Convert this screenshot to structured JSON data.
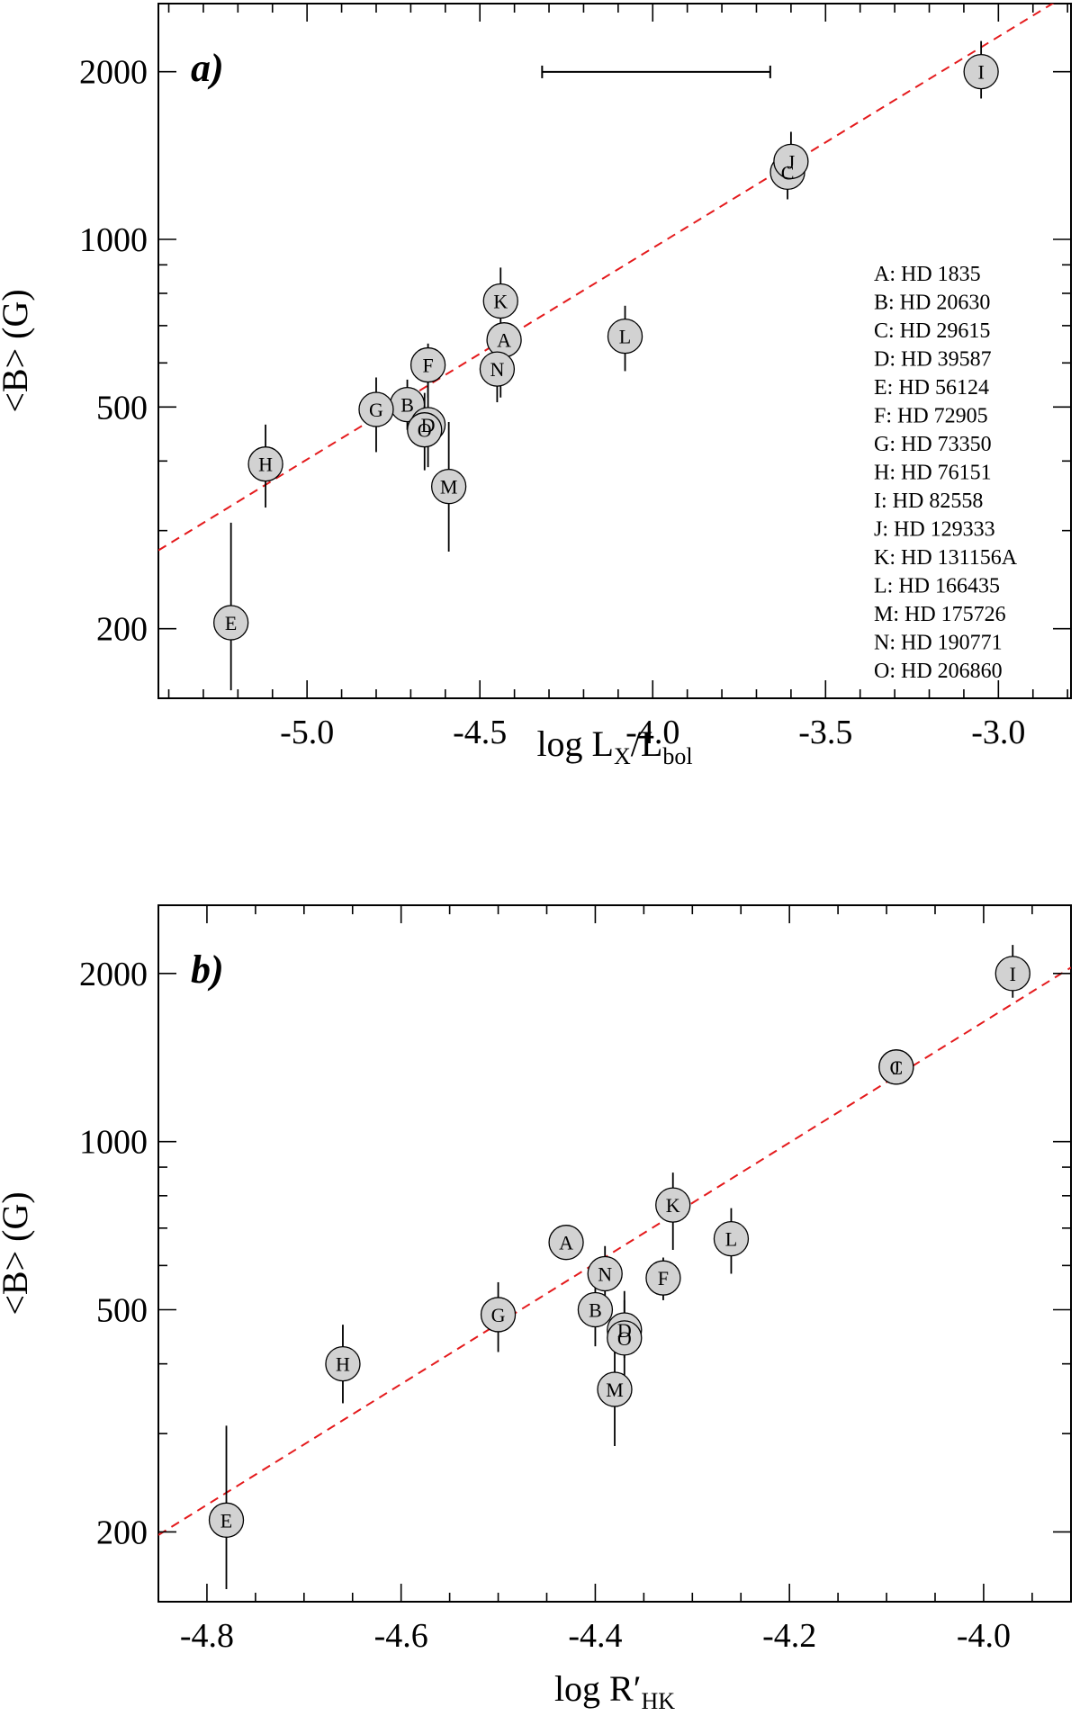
{
  "chart_data": [
    {
      "type": "scatter",
      "panel_label": "a)",
      "xlabel": "log L",
      "xlabel_sub1": "X",
      "xlabel_mid": "/L",
      "xlabel_sub2": "bol",
      "ylabel": "<B> (G)",
      "x_scale": "linear",
      "y_scale": "log",
      "xlim": [
        -5.43,
        -2.79
      ],
      "ylim": [
        150,
        2650
      ],
      "x_ticks": [
        -5.0,
        -4.5,
        -4.0,
        -3.5,
        -3.0
      ],
      "x_tick_labels": [
        "-5.0",
        "-4.5",
        "-4.0",
        "-3.5",
        "-3.0"
      ],
      "x_minor_step": 0.1,
      "y_ticks": [
        200,
        500,
        1000,
        2000
      ],
      "y_tick_labels": [
        "200",
        "500",
        "1000",
        "2000"
      ],
      "y_minor_ticks": [
        300,
        400,
        600,
        700,
        800,
        900
      ],
      "fit_line": {
        "x": [
          -5.43,
          -2.79
        ],
        "y": [
          276.5,
          2776.8
        ]
      },
      "scale_bar": {
        "x": [
          -4.32,
          -3.66
        ],
        "y": 1998
      },
      "legend": [
        "A: HD 1835",
        "B: HD 20630",
        "C: HD 29615",
        "D: HD 39587",
        "E: HD 56124",
        "F: HD 72905",
        "G: HD 73350",
        "H: HD 76151",
        "I: HD 82558",
        "J: HD 129333",
        "K: HD 131156A",
        "L: HD 166435",
        "M: HD 175726",
        "N: HD 190771",
        "O: HD 206860"
      ],
      "points": [
        {
          "label": "A",
          "x": -4.43,
          "y": 660,
          "yerr": [
            600,
            710
          ]
        },
        {
          "label": "B",
          "x": -4.71,
          "y": 505,
          "yerr": [
            455,
            560
          ]
        },
        {
          "label": "C",
          "x": -3.61,
          "y": 1320,
          "yerr": [
            1180,
            1480
          ]
        },
        {
          "label": "D",
          "x": -4.65,
          "y": 465,
          "yerr": [
            390,
            560
          ]
        },
        {
          "label": "E",
          "x": -5.22,
          "y": 205,
          "yerr": [
            155,
            310
          ]
        },
        {
          "label": "F",
          "x": -4.65,
          "y": 595,
          "yerr": [
            520,
            650
          ]
        },
        {
          "label": "G",
          "x": -4.8,
          "y": 495,
          "yerr": [
            415,
            565
          ]
        },
        {
          "label": "H",
          "x": -5.12,
          "y": 395,
          "yerr": [
            330,
            465
          ]
        },
        {
          "label": "I",
          "x": -3.05,
          "y": 2000,
          "yerr": [
            1790,
            2270
          ]
        },
        {
          "label": "J",
          "x": -3.6,
          "y": 1380,
          "yerr": [
            1230,
            1560
          ]
        },
        {
          "label": "K",
          "x": -4.44,
          "y": 775,
          "yerr": [
            520,
            890
          ]
        },
        {
          "label": "L",
          "x": -4.08,
          "y": 670,
          "yerr": [
            580,
            760
          ]
        },
        {
          "label": "M",
          "x": -4.59,
          "y": 360,
          "yerr": [
            275,
            470
          ]
        },
        {
          "label": "N",
          "x": -4.45,
          "y": 585,
          "yerr": [
            510,
            650
          ]
        },
        {
          "label": "O",
          "x": -4.66,
          "y": 455,
          "yerr": [
            385,
            530
          ]
        }
      ]
    },
    {
      "type": "scatter",
      "panel_label": "b)",
      "xlabel": "log R′",
      "xlabel_sub1": "HK",
      "xlabel_mid": "",
      "xlabel_sub2": "",
      "ylabel": "<B> (G)",
      "x_scale": "linear",
      "y_scale": "log",
      "xlim": [
        -4.85,
        -3.91
      ],
      "ylim": [
        150,
        2650
      ],
      "x_ticks": [
        -4.8,
        -4.6,
        -4.4,
        -4.2,
        -4.0
      ],
      "x_tick_labels": [
        "-4.8",
        "-4.6",
        "-4.4",
        "-4.2",
        "-4.0"
      ],
      "x_minor_step": 0.05,
      "y_ticks": [
        200,
        500,
        1000,
        2000
      ],
      "y_tick_labels": [
        "200",
        "500",
        "1000",
        "2000"
      ],
      "y_minor_ticks": [
        300,
        400,
        600,
        700,
        800,
        900
      ],
      "fit_line": {
        "x": [
          -4.85,
          -3.91
        ],
        "y": [
          197.5,
          2050
        ]
      },
      "scale_bar": null,
      "legend": [],
      "points": [
        {
          "label": "A",
          "x": -4.43,
          "y": 660,
          "yerr": [
            620,
            700
          ]
        },
        {
          "label": "B",
          "x": -4.4,
          "y": 500,
          "yerr": [
            430,
            580
          ]
        },
        {
          "label": "C",
          "x": -4.09,
          "y": 1360,
          "yerr": [
            1320,
            1420
          ]
        },
        {
          "label": "D",
          "x": -4.37,
          "y": 460,
          "yerr": [
            410,
            520
          ]
        },
        {
          "label": "E",
          "x": -4.78,
          "y": 210,
          "yerr": [
            158,
            310
          ]
        },
        {
          "label": "F",
          "x": -4.33,
          "y": 570,
          "yerr": [
            520,
            620
          ]
        },
        {
          "label": "G",
          "x": -4.5,
          "y": 490,
          "yerr": [
            420,
            560
          ]
        },
        {
          "label": "H",
          "x": -4.66,
          "y": 400,
          "yerr": [
            340,
            470
          ]
        },
        {
          "label": "I",
          "x": -3.97,
          "y": 2000,
          "yerr": [
            1810,
            2250
          ]
        },
        {
          "label": "J",
          "x": -4.09,
          "y": 1360,
          "yerr": [
            1330,
            1390
          ]
        },
        {
          "label": "K",
          "x": -4.32,
          "y": 770,
          "yerr": [
            640,
            880
          ]
        },
        {
          "label": "L",
          "x": -4.26,
          "y": 670,
          "yerr": [
            580,
            760
          ]
        },
        {
          "label": "M",
          "x": -4.38,
          "y": 360,
          "yerr": [
            285,
            430
          ]
        },
        {
          "label": "N",
          "x": -4.39,
          "y": 580,
          "yerr": [
            480,
            650
          ]
        },
        {
          "label": "O",
          "x": -4.37,
          "y": 445,
          "yerr": [
            380,
            540
          ]
        }
      ]
    }
  ]
}
